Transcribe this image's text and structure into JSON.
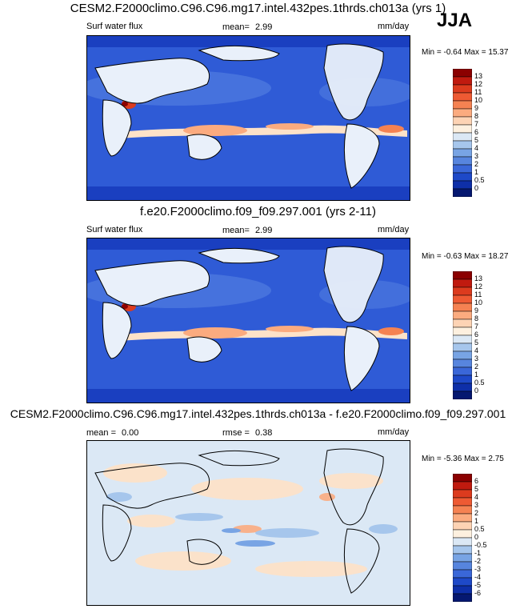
{
  "season": "JJA",
  "panels": [
    {
      "title": "CESM2.F2000climo.C96.C96.mg17.intel.432pes.1thrds.ch013a (yrs 1)",
      "variable": "Surf water flux",
      "mean_label": "mean=",
      "mean": "2.99",
      "units": "mm/day",
      "min_label": "Min =",
      "min": "-0.64",
      "max_label": "Max =",
      "max": "15.37",
      "colorbar_labels": [
        "13",
        "12",
        "11",
        "10",
        "9",
        "8",
        "7",
        "6",
        "5",
        "4",
        "3",
        "2",
        "1",
        "0.5",
        "0"
      ],
      "palette": [
        "#8b0000",
        "#c01a0f",
        "#dc3b1e",
        "#ee5a33",
        "#f58252",
        "#fbab7f",
        "#fdd3b4",
        "#fdf0df",
        "#dbe8f5",
        "#a6c6ec",
        "#78a4e4",
        "#5785de",
        "#3a67d8",
        "#1e49c8",
        "#0e2fa8",
        "#051870"
      ]
    },
    {
      "title": "f.e20.F2000climo.f09_f09.297.001 (yrs 2-11)",
      "variable": "Surf water flux",
      "mean_label": "mean=",
      "mean": "2.99",
      "units": "mm/day",
      "min_label": "Min =",
      "min": "-0.63",
      "max_label": "Max =",
      "max": "18.27",
      "colorbar_labels": [
        "13",
        "12",
        "11",
        "10",
        "9",
        "8",
        "7",
        "6",
        "5",
        "4",
        "3",
        "2",
        "1",
        "0.5",
        "0"
      ],
      "palette": [
        "#8b0000",
        "#c01a0f",
        "#dc3b1e",
        "#ee5a33",
        "#f58252",
        "#fbab7f",
        "#fdd3b4",
        "#fdf0df",
        "#dbe8f5",
        "#a6c6ec",
        "#78a4e4",
        "#5785de",
        "#3a67d8",
        "#1e49c8",
        "#0e2fa8",
        "#051870"
      ]
    },
    {
      "title": "CESM2.F2000climo.C96.C96.mg17.intel.432pes.1thrds.ch013a - f.e20.F2000climo.f09_f09.297.001",
      "mean_label": "mean =",
      "mean": "0.00",
      "rmse_label": "rmse =",
      "rmse": "0.38",
      "units": "mm/day",
      "min_label": "Min =",
      "min": "-5.36",
      "max_label": "Max =",
      "max": "2.75",
      "colorbar_labels": [
        "6",
        "5",
        "4",
        "3",
        "2",
        "1",
        "0.5",
        "0",
        "-0.5",
        "-1",
        "-2",
        "-3",
        "-4",
        "-5",
        "-6"
      ],
      "palette": [
        "#8b0000",
        "#c01a0f",
        "#dc3b1e",
        "#ee5a33",
        "#f58252",
        "#fbab7f",
        "#fdd3b4",
        "#fdf0df",
        "#dbe8f5",
        "#a6c6ec",
        "#78a4e4",
        "#5785de",
        "#3a67d8",
        "#1e49c8",
        "#0e2fa8",
        "#051870"
      ]
    }
  ]
}
